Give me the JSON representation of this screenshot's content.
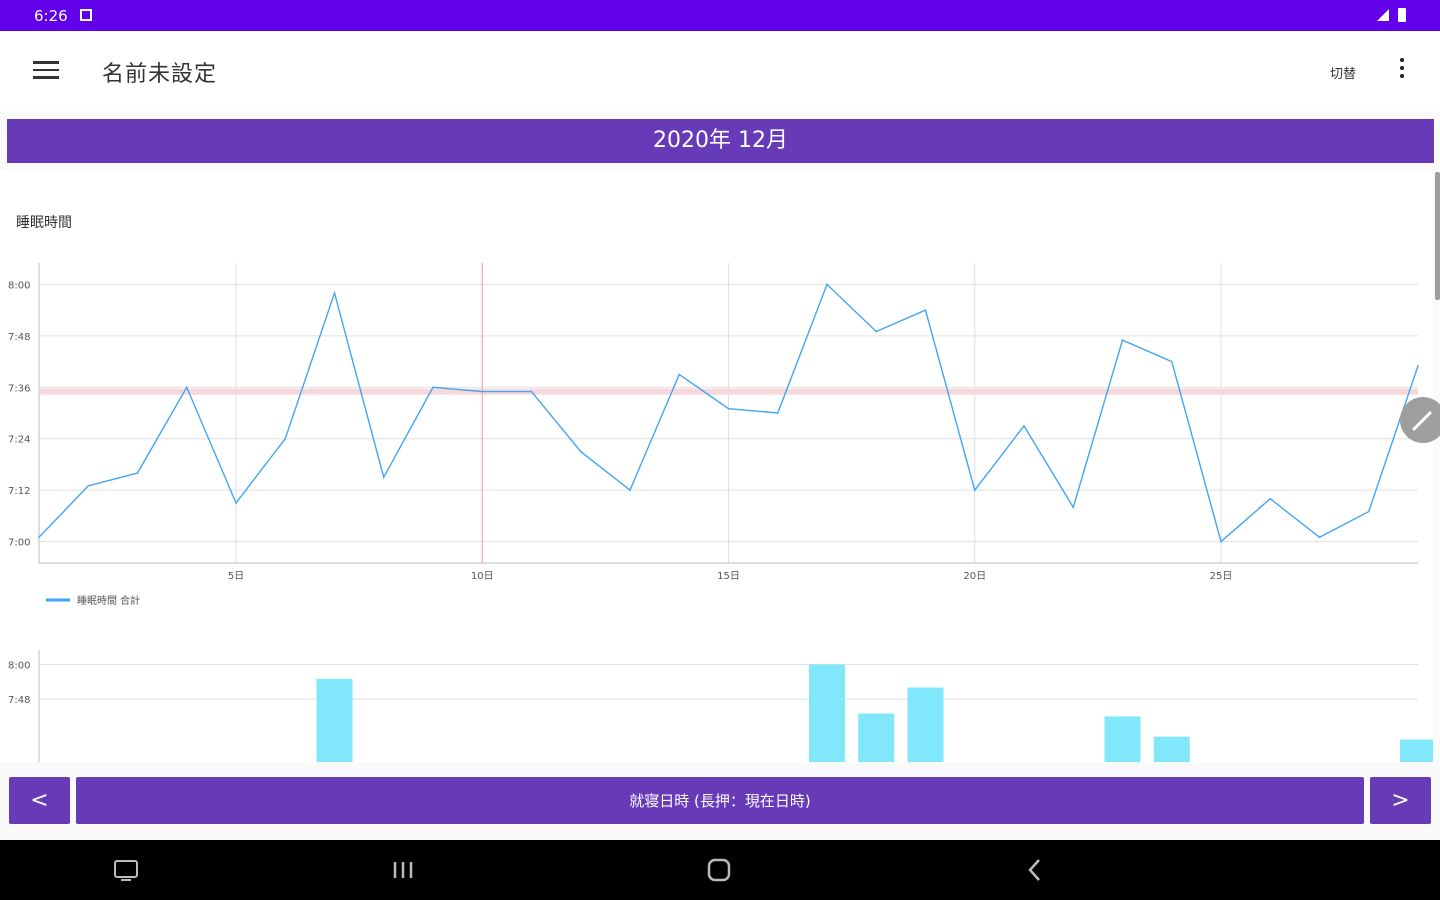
{
  "status_bar": {
    "time": "6:26"
  },
  "app_bar": {
    "title": "名前未設定",
    "switch_label": "切替"
  },
  "month_header": "2020年 12月",
  "chart_data": [
    {
      "type": "line",
      "title": "睡眠時間",
      "x": [
        1,
        2,
        3,
        4,
        5,
        6,
        7,
        8,
        9,
        10,
        11,
        12,
        13,
        14,
        15,
        16,
        17,
        18,
        19,
        20,
        21,
        22,
        23,
        24,
        25,
        26,
        27,
        28,
        29
      ],
      "series": [
        {
          "name": "睡眠時間 合計",
          "color": "#42a5f5",
          "values": [
            "7:01",
            "7:13",
            "7:16",
            "7:36",
            "7:09",
            "7:24",
            "7:58",
            "7:15",
            "7:36",
            "7:35",
            "7:35",
            "7:21",
            "7:12",
            "7:39",
            "7:31",
            "7:30",
            "8:00",
            "7:49",
            "7:54",
            "7:12",
            "7:27",
            "7:08",
            "7:47",
            "7:42",
            "7:00",
            "7:10",
            "7:01",
            "7:07",
            "7:41"
          ]
        }
      ],
      "x_ticks": [
        "5日",
        "10日",
        "15日",
        "20日",
        "25日"
      ],
      "y_ticks": [
        "7:00",
        "7:12",
        "7:24",
        "7:36",
        "7:48",
        "8:00"
      ],
      "ylim": [
        "6:55",
        "8:05"
      ],
      "reference_line": {
        "value": "7:35",
        "color": "#f8d7da"
      },
      "highlight_x": 10,
      "legend_position": "bottom-left"
    },
    {
      "type": "bar",
      "color": "#80e8fa",
      "x": [
        7,
        17,
        18,
        19,
        23,
        24,
        29
      ],
      "values": [
        "7:55",
        "8:00",
        "7:43",
        "7:52",
        "7:42",
        "7:35",
        "7:34"
      ],
      "y_ticks": [
        "7:48",
        "8:00"
      ]
    }
  ],
  "buttons": {
    "prev": "<",
    "main": "就寝日時 (長押：現在日時)",
    "next": ">"
  }
}
